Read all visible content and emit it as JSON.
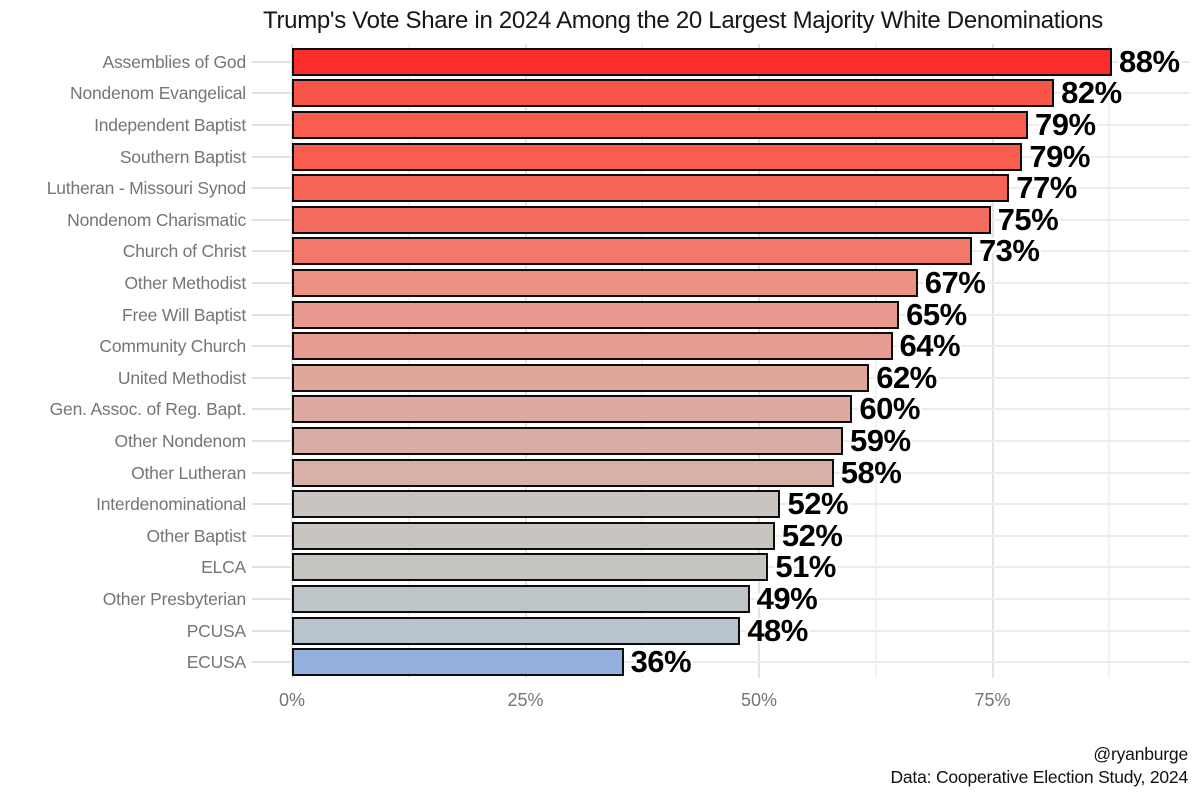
{
  "title": "Trump's Vote Share in 2024 Among the 20 Largest Majority White Denominations",
  "footer": {
    "line1": "@ryanburge",
    "line2": "Data: Cooperative Election Study, 2024"
  },
  "chart_data": {
    "type": "bar",
    "orientation": "horizontal",
    "title": "Trump's Vote Share in 2024 Among the 20 Largest Majority White Denominations",
    "categories": [
      "Assemblies of God",
      "Nondenom Evangelical",
      "Independent Baptist",
      "Southern Baptist",
      "Lutheran - Missouri Synod",
      "Nondenom Charismatic",
      "Church of Christ",
      "Other Methodist",
      "Free Will Baptist",
      "Community Church",
      "United Methodist",
      "Gen. Assoc. of Reg. Bapt.",
      "Other Nondenom",
      "Other Lutheran",
      "Interdenominational",
      "Other Baptist",
      "ELCA",
      "Other Presbyterian",
      "PCUSA",
      "ECUSA"
    ],
    "values": [
      88,
      82,
      79,
      79,
      77,
      75,
      73,
      67,
      65,
      64,
      62,
      60,
      59,
      58,
      52,
      52,
      51,
      49,
      48,
      36
    ],
    "value_labels": [
      "88%",
      "82%",
      "79%",
      "79%",
      "77%",
      "75%",
      "73%",
      "67%",
      "65%",
      "64%",
      "62%",
      "60%",
      "59%",
      "58%",
      "52%",
      "52%",
      "51%",
      "49%",
      "48%",
      "36%"
    ],
    "bar_lengths_pct": [
      87.8,
      81.6,
      78.8,
      78.2,
      76.8,
      74.8,
      72.8,
      67,
      65,
      64.3,
      61.8,
      60,
      59,
      58,
      52.3,
      51.7,
      51,
      49,
      48,
      35.5
    ],
    "bar_colors": [
      "#fb2c2c",
      "#f95549",
      "#f85d50",
      "#f85d50",
      "#f66456",
      "#f46c5f",
      "#f1786b",
      "#ec9082",
      "#e8998d",
      "#e69c91",
      "#e0a59b",
      "#dcaaa1",
      "#d9ada4",
      "#d7b0a8",
      "#c9c4c0",
      "#c8c4c0",
      "#c5c5c2",
      "#bdc5c9",
      "#b7c4cd",
      "#93afdd"
    ],
    "xlabel": "",
    "ylabel": "",
    "x_tick_labels": [
      "0%",
      "25%",
      "50%",
      "75%"
    ],
    "x_tick_values": [
      0,
      25,
      50,
      75
    ],
    "grid_minor_x": [
      12.5,
      37.5,
      62.5,
      87.5
    ],
    "xlim": [
      0,
      96
    ],
    "grid": "major and minor vertical, row gridlines at category centers",
    "legend_position": "none",
    "style": {
      "background": "#ffffff",
      "bar_border": "#0d0d0d",
      "grid_major": "#e3e3e3",
      "grid_minor": "#f2f2f2",
      "grid_row": "#ececec",
      "axis_tick": "#e2e2e2",
      "category_label": "#757575",
      "title_color": "#161616",
      "value_label_color": "#000000"
    }
  }
}
